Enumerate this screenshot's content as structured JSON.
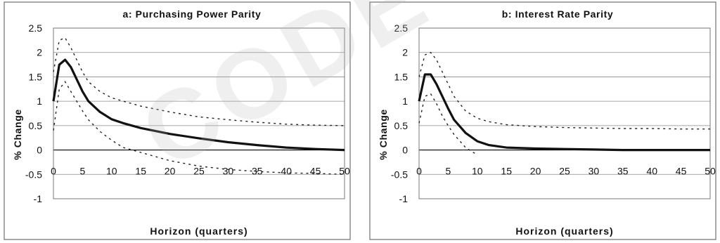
{
  "watermark": "CODE",
  "chart_data": [
    {
      "type": "line",
      "title": "a: Purchasing Power Parity",
      "xlabel": "Horizon (quarters)",
      "ylabel": "% Change",
      "xlim": [
        0,
        50
      ],
      "ylim": [
        -1,
        2.5
      ],
      "xticks": [
        0,
        5,
        10,
        15,
        20,
        25,
        30,
        35,
        40,
        45,
        50
      ],
      "yticks": [
        -1,
        -0.5,
        0,
        0.5,
        1,
        1.5,
        2,
        2.5
      ],
      "ytick_labels": [
        "-1",
        "-0.5",
        "0",
        "0.5",
        "1",
        "1.5",
        "2",
        "2.5"
      ],
      "grid": "horizontal",
      "series": [
        {
          "style": "solid",
          "x": [
            0,
            1,
            2,
            3,
            4,
            5,
            6,
            8,
            10,
            12,
            15,
            20,
            25,
            30,
            35,
            40,
            45,
            50
          ],
          "y": [
            1.0,
            1.75,
            1.85,
            1.7,
            1.45,
            1.2,
            1.0,
            0.78,
            0.63,
            0.55,
            0.45,
            0.33,
            0.24,
            0.16,
            0.1,
            0.05,
            0.02,
            0.0
          ]
        },
        {
          "style": "dashed",
          "x": [
            0,
            1,
            2,
            3,
            4,
            5,
            6,
            8,
            10,
            12,
            15,
            20,
            25,
            30,
            35,
            40,
            45,
            50
          ],
          "y": [
            1.6,
            2.25,
            2.3,
            2.1,
            1.85,
            1.6,
            1.4,
            1.2,
            1.07,
            1.0,
            0.9,
            0.78,
            0.68,
            0.62,
            0.57,
            0.53,
            0.51,
            0.5
          ]
        },
        {
          "style": "dashed",
          "x": [
            0,
            1,
            2,
            3,
            4,
            5,
            6,
            8,
            10,
            12,
            15,
            20,
            25,
            30,
            35,
            40,
            45,
            50
          ],
          "y": [
            0.4,
            1.25,
            1.4,
            1.2,
            1.0,
            0.8,
            0.62,
            0.38,
            0.2,
            0.05,
            -0.05,
            -0.22,
            -0.33,
            -0.4,
            -0.44,
            -0.47,
            -0.48,
            -0.5
          ]
        }
      ]
    },
    {
      "type": "line",
      "title": "b: Interest Rate Parity",
      "xlabel": "Horizon (quarters)",
      "ylabel": "% Change",
      "xlim": [
        0,
        50
      ],
      "ylim": [
        -1,
        2.5
      ],
      "xticks": [
        0,
        5,
        10,
        15,
        20,
        25,
        30,
        35,
        40,
        45,
        50
      ],
      "yticks": [
        -1,
        -0.5,
        0,
        0.5,
        1,
        1.5,
        2,
        2.5
      ],
      "ytick_labels": [
        "-1",
        "-0.5",
        "0",
        "0.5",
        "1",
        "1.5",
        "2",
        "2.5"
      ],
      "grid": "horizontal",
      "series": [
        {
          "style": "solid",
          "x": [
            0,
            1,
            2,
            3,
            4,
            5,
            6,
            8,
            10,
            12,
            15,
            20,
            25,
            30,
            35,
            40,
            45,
            50
          ],
          "y": [
            1.0,
            1.55,
            1.55,
            1.35,
            1.1,
            0.85,
            0.62,
            0.35,
            0.18,
            0.1,
            0.05,
            0.03,
            0.02,
            0.01,
            0.0,
            0.0,
            0.0,
            0.0
          ]
        },
        {
          "style": "dashed",
          "x": [
            0,
            1,
            2,
            3,
            4,
            5,
            6,
            8,
            10,
            12,
            15,
            20,
            25,
            30,
            35,
            40,
            45,
            50
          ],
          "y": [
            1.5,
            1.95,
            2.0,
            1.85,
            1.6,
            1.35,
            1.1,
            0.8,
            0.65,
            0.58,
            0.52,
            0.48,
            0.46,
            0.45,
            0.44,
            0.44,
            0.43,
            0.43
          ]
        },
        {
          "style": "dashed",
          "x": [
            0,
            1,
            2,
            3,
            4,
            5,
            6,
            8,
            10
          ],
          "y": [
            0.55,
            1.1,
            1.15,
            0.95,
            0.7,
            0.5,
            0.32,
            0.05,
            -0.1
          ]
        }
      ]
    }
  ]
}
